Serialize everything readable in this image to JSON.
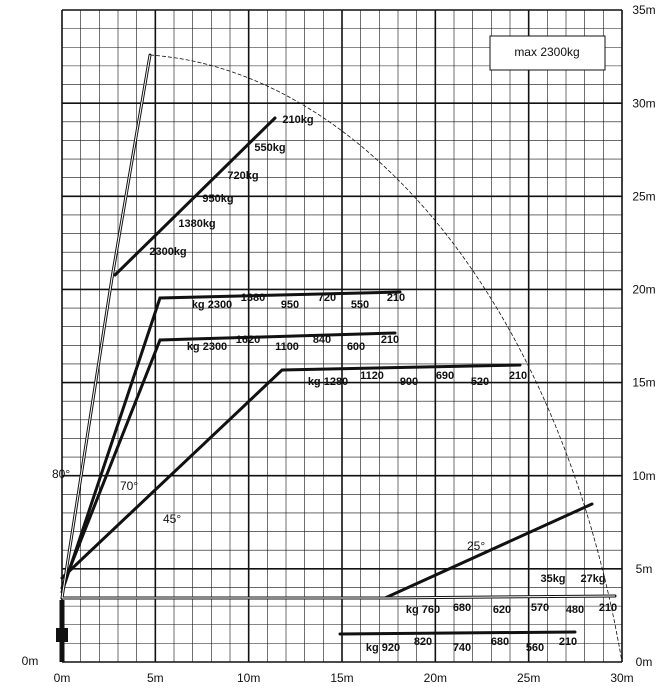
{
  "header": {
    "capacity": "max 2300kg"
  },
  "axis": {
    "x_labels": [
      "0m",
      "5m",
      "10m",
      "15m",
      "20m",
      "25m",
      "30m"
    ],
    "y_labels": [
      "0m",
      "5m",
      "10m",
      "15m",
      "20m",
      "25m",
      "30m",
      "35m"
    ],
    "left_zero": "0m"
  },
  "angles": [
    "80°",
    "70°",
    "45°",
    "25°"
  ],
  "loads": [
    [
      "2300kg",
      "1380kg",
      "950kg",
      "720kg",
      "550kg",
      "210kg"
    ],
    [
      "kg 2300",
      "1380",
      "950",
      "720",
      "550",
      "210"
    ],
    [
      "kg 2300",
      "1620",
      "1100",
      "840",
      "600",
      "210"
    ],
    [
      "kg 1280",
      "1120",
      "900",
      "690",
      "520",
      "210"
    ],
    [
      "35kg",
      "27kg"
    ],
    [
      "kg 760",
      "680",
      "620",
      "570",
      "480",
      "210"
    ],
    [
      "kg 920",
      "820",
      "740",
      "680",
      "560",
      "210"
    ]
  ]
}
